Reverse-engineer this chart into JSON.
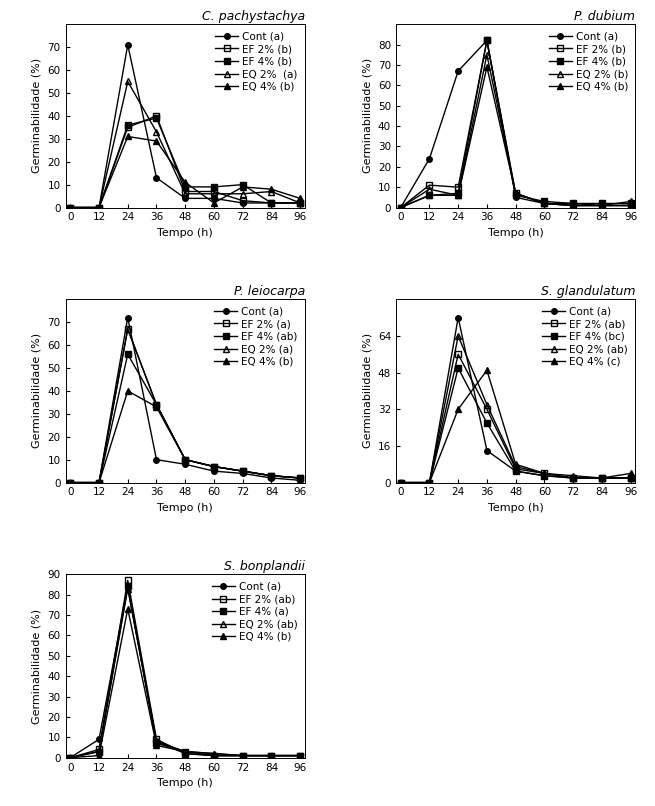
{
  "x": [
    0,
    12,
    24,
    36,
    48,
    60,
    72,
    84,
    96
  ],
  "plots": [
    {
      "title": "C. pachystachya",
      "ylim": [
        0,
        80
      ],
      "yticks": [
        0,
        10,
        20,
        30,
        40,
        50,
        60,
        70
      ],
      "series": [
        {
          "label": "Cont (a)",
          "marker": "o",
          "filled": true,
          "data": [
            0,
            0,
            71,
            13,
            4,
            4,
            2,
            2,
            2
          ]
        },
        {
          "label": "EF 2% (b)",
          "marker": "s",
          "filled": false,
          "data": [
            0,
            0,
            35,
            40,
            7,
            7,
            3,
            2,
            2
          ]
        },
        {
          "label": "EF 4% (b)",
          "marker": "s",
          "filled": true,
          "data": [
            0,
            0,
            36,
            39,
            9,
            9,
            10,
            2,
            2
          ]
        },
        {
          "label": "EQ 2%  (a)",
          "marker": "^",
          "filled": false,
          "data": [
            0,
            0,
            55,
            33,
            6,
            6,
            6,
            7,
            2
          ]
        },
        {
          "label": "EQ 4% (b)",
          "marker": "^",
          "filled": true,
          "data": [
            0,
            0,
            31,
            29,
            11,
            2,
            9,
            8,
            4
          ]
        }
      ]
    },
    {
      "title": "P. dubium",
      "ylim": [
        0,
        90
      ],
      "yticks": [
        0,
        10,
        20,
        30,
        40,
        50,
        60,
        70,
        80
      ],
      "series": [
        {
          "label": "Cont (a)",
          "marker": "o",
          "filled": true,
          "data": [
            0,
            24,
            67,
            82,
            5,
            2,
            1,
            1,
            1
          ]
        },
        {
          "label": "EF 2% (b)",
          "marker": "s",
          "filled": false,
          "data": [
            0,
            11,
            10,
            82,
            7,
            2,
            1,
            1,
            1
          ]
        },
        {
          "label": "EF 4% (b)",
          "marker": "s",
          "filled": true,
          "data": [
            0,
            6,
            7,
            82,
            6,
            3,
            2,
            2,
            2
          ]
        },
        {
          "label": "EQ 2% (b)",
          "marker": "^",
          "filled": false,
          "data": [
            0,
            9,
            6,
            75,
            7,
            2,
            1,
            1,
            1
          ]
        },
        {
          "label": "EQ 4% (b)",
          "marker": "^",
          "filled": true,
          "data": [
            0,
            6,
            6,
            69,
            7,
            2,
            2,
            1,
            3
          ]
        }
      ]
    },
    {
      "title": "P. leiocarpa",
      "ylim": [
        0,
        80
      ],
      "yticks": [
        0,
        10,
        20,
        30,
        40,
        50,
        60,
        70
      ],
      "series": [
        {
          "label": "Cont (a)",
          "marker": "o",
          "filled": true,
          "data": [
            0,
            0,
            72,
            10,
            8,
            5,
            4,
            2,
            1
          ]
        },
        {
          "label": "EF 2% (a)",
          "marker": "s",
          "filled": false,
          "data": [
            0,
            0,
            67,
            34,
            10,
            7,
            5,
            3,
            2
          ]
        },
        {
          "label": "EF 4% (ab)",
          "marker": "s",
          "filled": true,
          "data": [
            0,
            0,
            56,
            34,
            10,
            7,
            5,
            3,
            2
          ]
        },
        {
          "label": "EQ 2% (a)",
          "marker": "^",
          "filled": false,
          "data": [
            0,
            0,
            67,
            34,
            10,
            7,
            5,
            3,
            2
          ]
        },
        {
          "label": "EQ 4% (b)",
          "marker": "^",
          "filled": true,
          "data": [
            0,
            0,
            40,
            33,
            10,
            7,
            5,
            3,
            2
          ]
        }
      ]
    },
    {
      "title": "S. glandulatum",
      "ylim": [
        0,
        80
      ],
      "yticks": [
        0,
        16,
        32,
        48,
        64
      ],
      "series": [
        {
          "label": "Cont (a)",
          "marker": "o",
          "filled": true,
          "data": [
            0,
            0,
            72,
            14,
            5,
            3,
            2,
            2,
            2
          ]
        },
        {
          "label": "EF 2% (ab)",
          "marker": "s",
          "filled": false,
          "data": [
            0,
            0,
            56,
            32,
            6,
            4,
            2,
            2,
            2
          ]
        },
        {
          "label": "EF 4% (bc)",
          "marker": "s",
          "filled": true,
          "data": [
            0,
            0,
            50,
            26,
            5,
            3,
            2,
            2,
            2
          ]
        },
        {
          "label": "EQ 2% (ab)",
          "marker": "^",
          "filled": false,
          "data": [
            0,
            0,
            64,
            34,
            7,
            4,
            2,
            2,
            2
          ]
        },
        {
          "label": "EQ 4% (c)",
          "marker": "^",
          "filled": true,
          "data": [
            0,
            0,
            32,
            49,
            8,
            4,
            3,
            2,
            4
          ]
        }
      ]
    },
    {
      "title": "S. bonplandii",
      "ylim": [
        0,
        90
      ],
      "yticks": [
        0,
        10,
        20,
        30,
        40,
        50,
        60,
        70,
        80,
        90
      ],
      "series": [
        {
          "label": "Cont (a)",
          "marker": "o",
          "filled": true,
          "data": [
            0,
            9,
            84,
            8,
            2,
            1,
            1,
            1,
            1
          ]
        },
        {
          "label": "EF 2% (ab)",
          "marker": "s",
          "filled": false,
          "data": [
            0,
            4,
            87,
            9,
            2,
            1,
            1,
            1,
            1
          ]
        },
        {
          "label": "EF 4% (a)",
          "marker": "s",
          "filled": true,
          "data": [
            0,
            3,
            84,
            7,
            3,
            1,
            1,
            1,
            1
          ]
        },
        {
          "label": "EQ 2% (ab)",
          "marker": "^",
          "filled": false,
          "data": [
            0,
            3,
            83,
            8,
            3,
            2,
            1,
            1,
            1
          ]
        },
        {
          "label": "EQ 4% (b)",
          "marker": "^",
          "filled": true,
          "data": [
            0,
            1,
            73,
            6,
            3,
            2,
            1,
            1,
            1
          ]
        }
      ]
    }
  ],
  "xlabel": "Tempo (h)",
  "ylabel": "Germinabilidade (%)",
  "xticks": [
    0,
    12,
    24,
    36,
    48,
    60,
    72,
    84,
    96
  ],
  "line_color": "#000000",
  "bg_color": "#ffffff",
  "fontsize_title": 9,
  "fontsize_label": 8,
  "fontsize_tick": 7.5,
  "fontsize_legend": 7.5,
  "markersize": 4,
  "linewidth": 1.0
}
